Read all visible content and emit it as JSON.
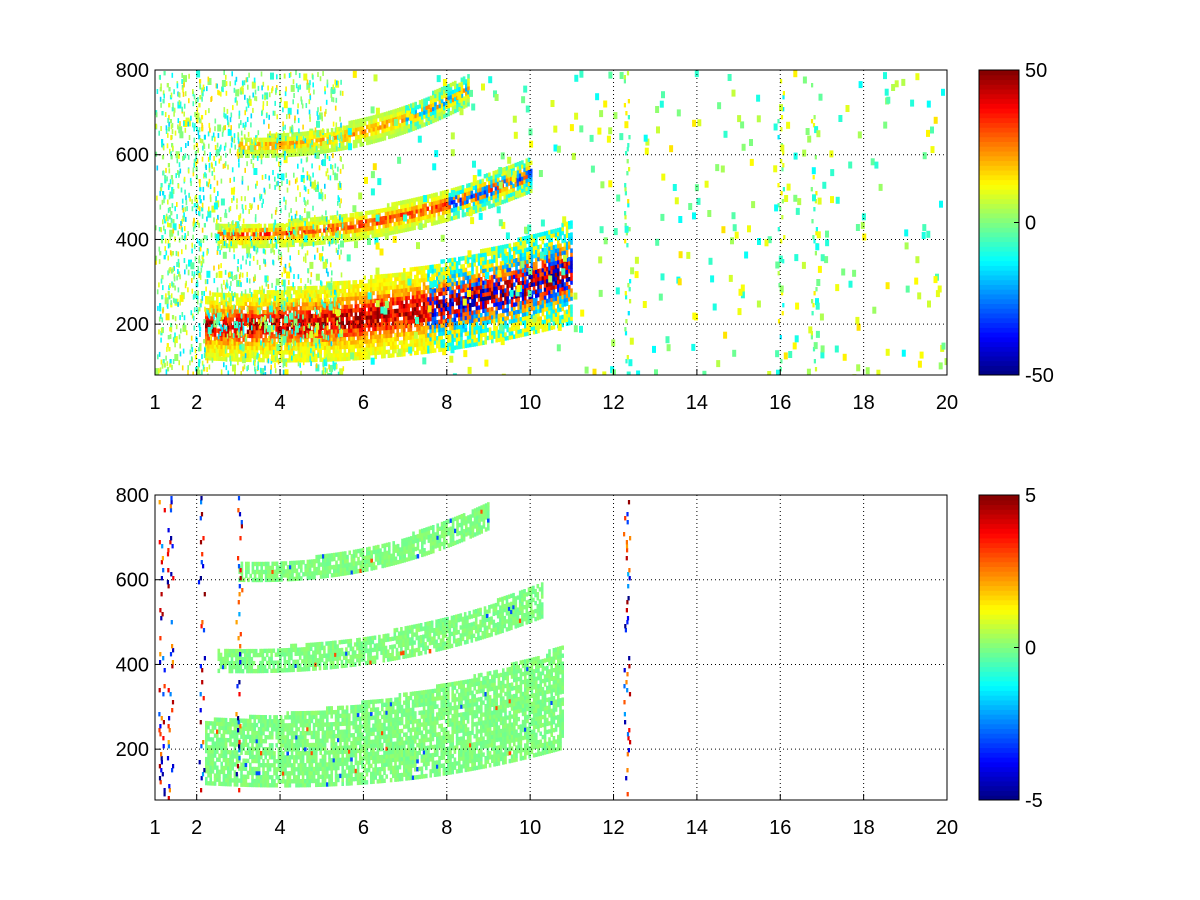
{
  "chart_data": [
    {
      "type": "heatmap",
      "title": "",
      "xlabel": "",
      "ylabel": "",
      "xlim": [
        1,
        20
      ],
      "ylim": [
        80,
        800
      ],
      "x_ticks": [
        1,
        2,
        4,
        6,
        8,
        10,
        12,
        14,
        16,
        18,
        20
      ],
      "x_tick_labels": [
        "1",
        "2",
        "4",
        "6",
        "8",
        "10",
        "12",
        "14",
        "16",
        "18",
        "20"
      ],
      "y_ticks": [
        200,
        400,
        600,
        800
      ],
      "y_tick_labels": [
        "200",
        "400",
        "600",
        "800"
      ],
      "grid": true,
      "colormap": "jet",
      "colorbar": {
        "range": [
          -50,
          50
        ],
        "ticks": [
          -50,
          0,
          50
        ],
        "tick_labels": [
          "-50",
          "0",
          "50"
        ]
      },
      "bands": [
        {
          "x_start": 2.2,
          "x_end": 11.0,
          "y_start": 200,
          "y_end": 330,
          "y_halfwidth": 75,
          "sign_flip_x": 7.5,
          "amplitude": 50
        },
        {
          "x_start": 2.5,
          "x_end": 10.0,
          "y_start": 415,
          "y_end": 560,
          "y_halfwidth": 25,
          "sign_flip_x": 8.0,
          "amplitude": 35
        },
        {
          "x_start": 3.0,
          "x_end": 8.5,
          "y_start": 625,
          "y_end": 760,
          "y_halfwidth": 22,
          "sign_flip_x": 7.0,
          "amplitude": 25
        }
      ],
      "scatter_columns_x": [
        1.15,
        1.35,
        2.0,
        2.1,
        12.3,
        16.0,
        16.8
      ]
    },
    {
      "type": "heatmap",
      "title": "",
      "xlabel": "",
      "ylabel": "",
      "xlim": [
        1,
        20
      ],
      "ylim": [
        80,
        800
      ],
      "x_ticks": [
        1,
        2,
        4,
        6,
        8,
        10,
        12,
        14,
        16,
        18,
        20
      ],
      "x_tick_labels": [
        "1",
        "2",
        "4",
        "6",
        "8",
        "10",
        "12",
        "14",
        "16",
        "18",
        "20"
      ],
      "y_ticks": [
        200,
        400,
        600,
        800
      ],
      "y_tick_labels": [
        "200",
        "400",
        "600",
        "800"
      ],
      "grid": true,
      "colormap": "jet",
      "colorbar": {
        "range": [
          -5,
          5
        ],
        "ticks": [
          -5,
          0,
          5
        ],
        "tick_labels": [
          "-5",
          "0",
          "5"
        ]
      },
      "bands": [
        {
          "x_start": 2.2,
          "x_end": 10.8,
          "y_start": 200,
          "y_end": 330,
          "y_halfwidth": 75,
          "sign_flip_x": 0,
          "amplitude": 0.4
        },
        {
          "x_start": 2.5,
          "x_end": 10.3,
          "y_start": 415,
          "y_end": 560,
          "y_halfwidth": 25,
          "sign_flip_x": 0,
          "amplitude": 0.4
        },
        {
          "x_start": 3.0,
          "x_end": 9.0,
          "y_start": 625,
          "y_end": 760,
          "y_halfwidth": 20,
          "sign_flip_x": 0,
          "amplitude": 0.4
        }
      ],
      "scatter_columns_x": [
        1.15,
        1.35,
        2.1,
        3.0,
        12.3
      ]
    }
  ]
}
